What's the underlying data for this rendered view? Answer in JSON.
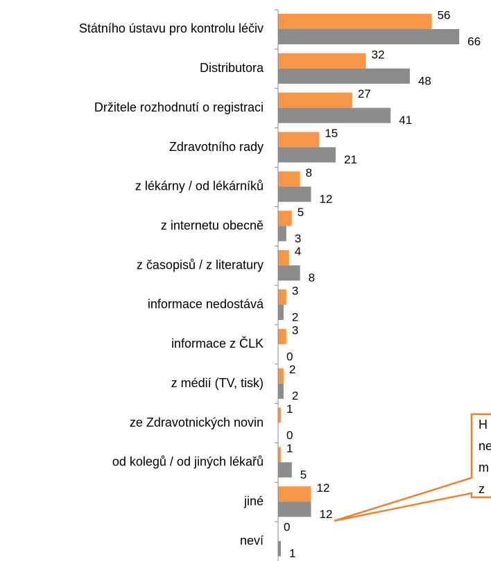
{
  "chart_data": {
    "type": "barh",
    "categories": [
      "Státního ústavu pro kontrolu léčiv",
      "Distributora",
      "Držitele rozhodnutí o registraci",
      "Zdravotního rady",
      "z lékárny / od lékárníků",
      "z internetu obecně",
      "z časopisů / z literatury",
      "informace nedostává",
      "informace z ČLK",
      "z médií (TV, tisk)",
      "ze Zdravotnických novin",
      "od kolegů / od jiných lékařů",
      "jiné",
      "neví"
    ],
    "series": [
      {
        "color": "#f79646",
        "values": [
          56,
          32,
          27,
          15,
          8,
          5,
          4,
          3,
          3,
          2,
          1,
          1,
          12,
          0
        ]
      },
      {
        "color": "#8c8c8c",
        "values": [
          66,
          48,
          41,
          21,
          12,
          3,
          8,
          2,
          0,
          2,
          0,
          5,
          12,
          1
        ]
      }
    ],
    "xlim": [
      0,
      70
    ],
    "annotation": [
      "H",
      "ne",
      "m",
      "z"
    ]
  }
}
